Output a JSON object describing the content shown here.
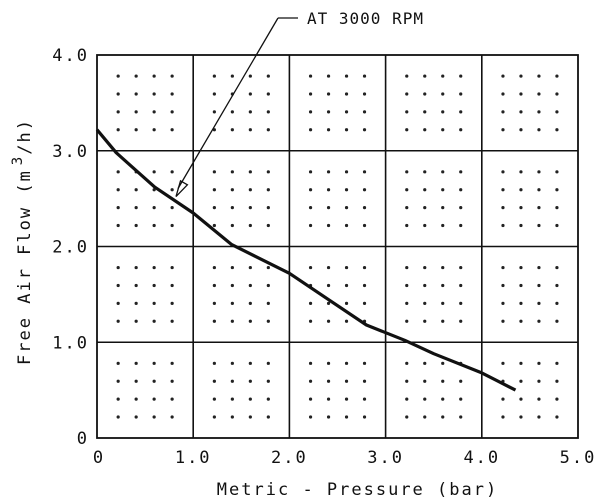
{
  "chart_data": {
    "type": "line",
    "xlabel": "Metric - Pressure (bar)",
    "ylabel": "Free Air Flow (m",
    "ylabel_sup": "3",
    "ylabel_tail": "/h)",
    "xlim": [
      0,
      5
    ],
    "ylim": [
      0,
      4
    ],
    "x_ticks": [
      0,
      1,
      2,
      3,
      4,
      5
    ],
    "y_ticks": [
      0,
      1,
      2,
      3,
      4
    ],
    "x_tick_labels": [
      "0",
      "1.0",
      "2.0",
      "3.0",
      "4.0",
      "5.0"
    ],
    "y_tick_labels": [
      "0",
      "1.0",
      "2.0",
      "3.0",
      "4.0"
    ],
    "grid": true,
    "series": [
      {
        "x": [
          0.0,
          0.2,
          0.6,
          1.0,
          1.4,
          2.0,
          2.4,
          2.8,
          3.2,
          3.5,
          4.0,
          4.35
        ],
        "y": [
          3.22,
          2.98,
          2.62,
          2.35,
          2.02,
          1.72,
          1.45,
          1.18,
          1.02,
          0.88,
          0.68,
          0.5
        ]
      }
    ],
    "annotation": {
      "text": "AT 3000 RPM",
      "x": 0.8,
      "y": 2.5
    }
  },
  "colors": {
    "line": "#111111",
    "grid": "#111111",
    "dots": "#222222",
    "background": "#ffffff"
  }
}
